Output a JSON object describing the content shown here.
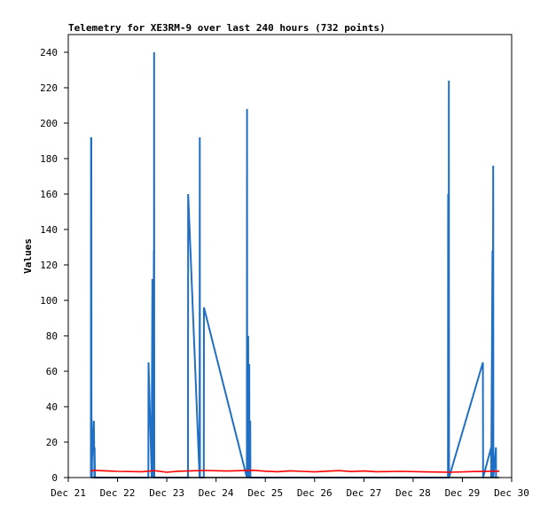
{
  "chart_data": {
    "type": "line",
    "title": "Telemetry for XE3RM-9 over last 240 hours (732 points)",
    "xlabel": "",
    "ylabel": "Values",
    "xlim": [
      "Dec 21",
      "Dec 30"
    ],
    "ylim": [
      0,
      250
    ],
    "x_ticks": [
      "Dec 21",
      "Dec 22",
      "Dec 23",
      "Dec 24",
      "Dec 25",
      "Dec 26",
      "Dec 27",
      "Dec 28",
      "Dec 29",
      "Dec 30"
    ],
    "y_ticks": [
      0,
      20,
      40,
      60,
      80,
      100,
      120,
      140,
      160,
      180,
      200,
      220,
      240
    ],
    "grid": false,
    "legend": "none",
    "series": [
      {
        "color": "#1f6fc4",
        "x": [
          "Dec 21 11:00",
          "Dec 21 11:05",
          "Dec 21 11:10",
          "Dec 21 11:15",
          "Dec 21 11:20",
          "Dec 21 11:25",
          "Dec 21 11:30",
          "Dec 21 11:35",
          "Dec 21 12:30",
          "Dec 21 12:45",
          "Dec 21 12:50",
          "Dec 21 13:00",
          "Dec 22 15:00",
          "Dec 22 15:05",
          "Dec 22 16:40",
          "Dec 22 16:45",
          "Dec 22 17:00",
          "Dec 22 17:05",
          "Dec 22 17:20",
          "Dec 22 17:25",
          "Dec 22 17:40",
          "Dec 22 17:45",
          "Dec 22 17:50",
          "Dec 22 17:55",
          "Dec 23 10:20",
          "Dec 23 10:25",
          "Dec 23 16:00",
          "Dec 23 16:05",
          "Dec 23 16:10",
          "Dec 23 18:00",
          "Dec 23 18:05",
          "Dec 24 15:00",
          "Dec 24 15:05",
          "Dec 24 15:10",
          "Dec 24 15:40",
          "Dec 24 15:45",
          "Dec 24 16:10",
          "Dec 24 16:15",
          "Dec 24 16:40",
          "Dec 24 16:45",
          "Dec 28 17:00",
          "Dec 28 17:05",
          "Dec 28 17:20",
          "Dec 28 17:25",
          "Dec 28 17:30",
          "Dec 29 10:00",
          "Dec 29 10:05",
          "Dec 29 14:00",
          "Dec 29 14:05",
          "Dec 29 14:40",
          "Dec 29 14:45",
          "Dec 29 15:00",
          "Dec 29 15:05",
          "Dec 29 16:20",
          "Dec 29 16:25",
          "Dec 29 16:30"
        ],
        "y": [
          0,
          192,
          0,
          192,
          0,
          33,
          0,
          10,
          32,
          0,
          17,
          0,
          0,
          65,
          0,
          45,
          112,
          0,
          65,
          0,
          128,
          0,
          240,
          0,
          0,
          160,
          0,
          192,
          0,
          0,
          96,
          0,
          208,
          0,
          80,
          0,
          64,
          0,
          32,
          0,
          0,
          160,
          0,
          224,
          0,
          65,
          0,
          17,
          0,
          128,
          0,
          176,
          0,
          17,
          0,
          0
        ]
      },
      {
        "color": "#ff0000",
        "x": [
          "Dec 21 11:00",
          "Dec 21 12:00",
          "Dec 21 18:00",
          "Dec 22 00:00",
          "Dec 22 12:00",
          "Dec 22 18:00",
          "Dec 23 00:00",
          "Dec 23 06:00",
          "Dec 23 12:00",
          "Dec 23 18:00",
          "Dec 24 06:00",
          "Dec 24 18:00",
          "Dec 25 00:00",
          "Dec 25 06:00",
          "Dec 25 12:00",
          "Dec 25 18:00",
          "Dec 26 00:00",
          "Dec 26 06:00",
          "Dec 26 12:00",
          "Dec 26 18:00",
          "Dec 27 00:00",
          "Dec 27 06:00",
          "Dec 27 18:00",
          "Dec 28 06:00",
          "Dec 28 18:00",
          "Dec 29 06:00",
          "Dec 29 18:00"
        ],
        "y": [
          3.4,
          4.1,
          3.8,
          3.5,
          3.3,
          3.9,
          3.0,
          3.6,
          3.8,
          4.0,
          3.7,
          4.1,
          3.6,
          3.3,
          3.8,
          3.5,
          3.2,
          3.6,
          3.9,
          3.4,
          3.7,
          3.3,
          3.5,
          3.2,
          3.0,
          3.4,
          3.6
        ]
      },
      {
        "color": "#000000",
        "x": [
          "Dec 21 11:00",
          "Dec 29 18:00"
        ],
        "y": [
          0,
          0
        ]
      }
    ]
  }
}
